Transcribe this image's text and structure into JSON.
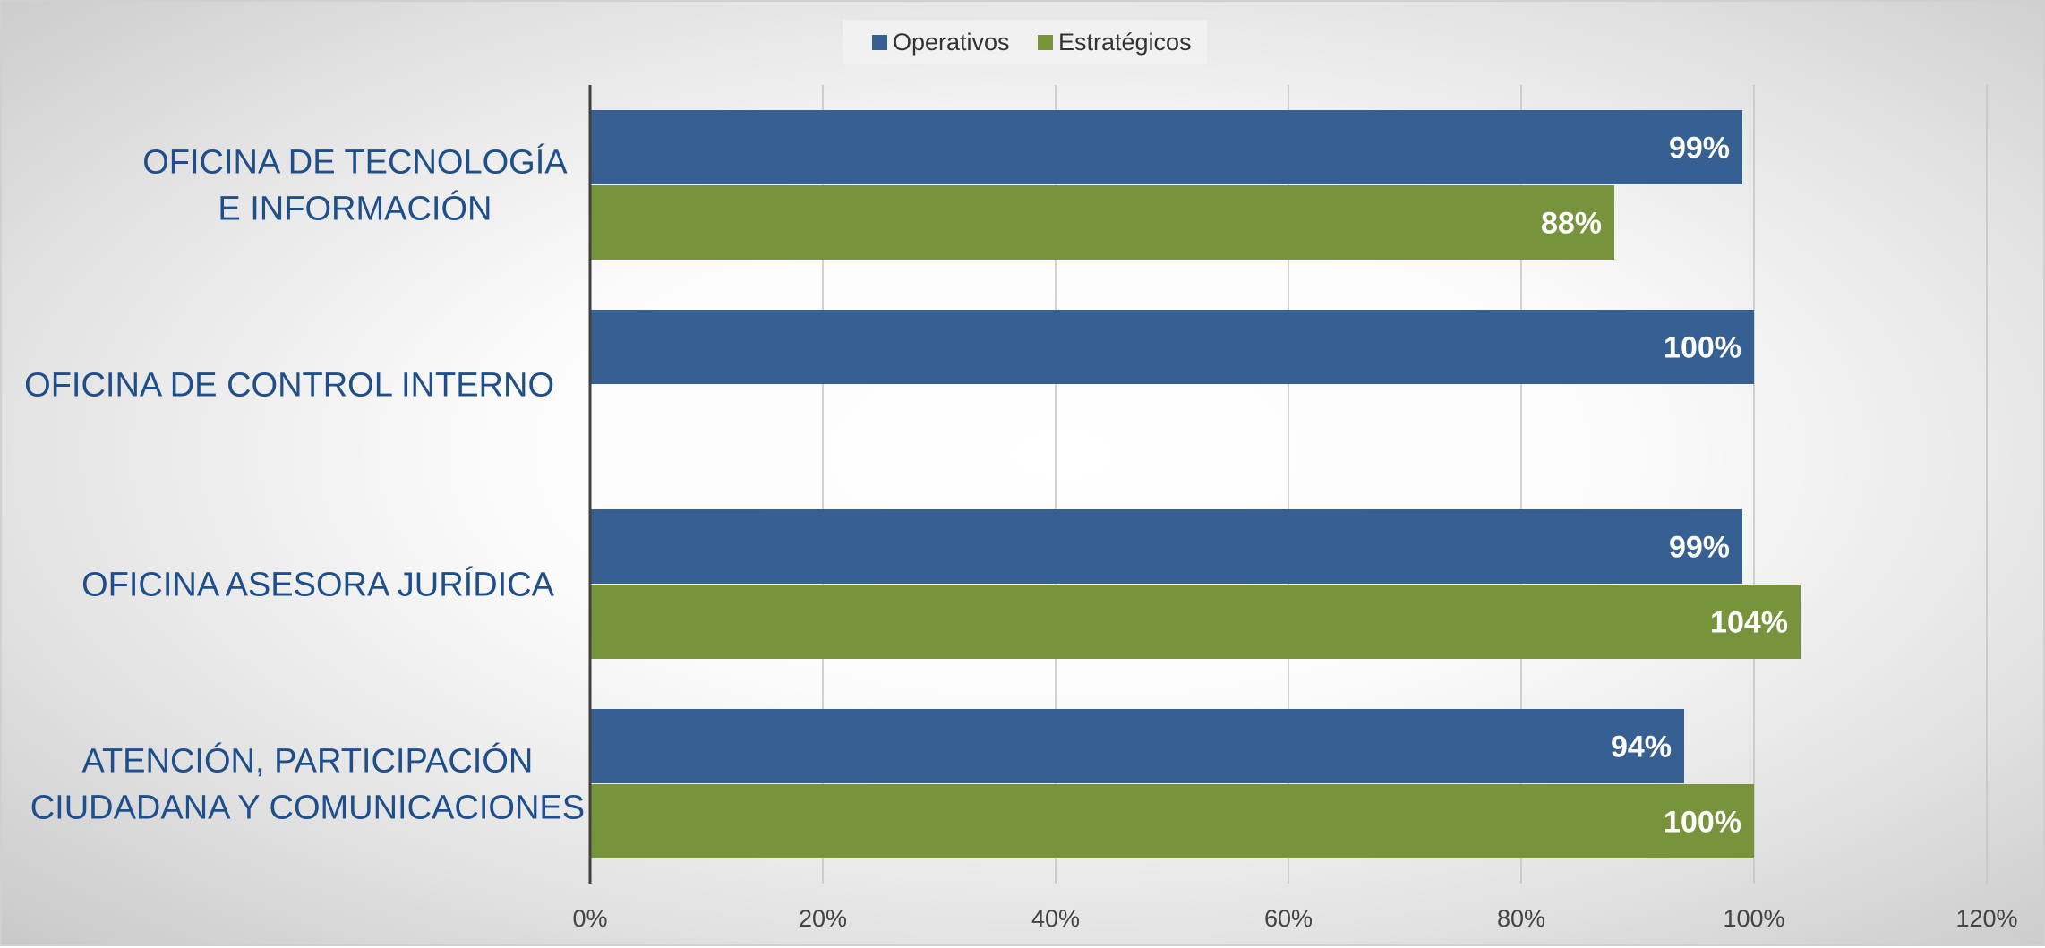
{
  "chart_data": {
    "type": "bar",
    "orientation": "horizontal",
    "categories": [
      [
        "OFICINA DE TECNOLOGÍA",
        "E INFORMACIÓN"
      ],
      [
        "OFICINA DE CONTROL INTERNO"
      ],
      [
        "OFICINA ASESORA JURÍDICA"
      ],
      [
        "ATENCIÓN, PARTICIPACIÓN",
        "CIUDADANA Y COMUNICACIONES"
      ]
    ],
    "series": [
      {
        "name": "Operativos",
        "color": "#366092",
        "values": [
          99,
          100,
          99,
          94
        ],
        "labels": [
          "99%",
          "100%",
          "99%",
          "94%"
        ]
      },
      {
        "name": "Estratégicos",
        "color": "#77933c",
        "values": [
          88,
          null,
          104,
          100
        ],
        "labels": [
          "88%",
          "",
          "104%",
          "100%"
        ]
      }
    ],
    "xlim": [
      0,
      120
    ],
    "xticks": [
      0,
      20,
      40,
      60,
      80,
      100,
      120
    ],
    "xtick_labels": [
      "0%",
      "20%",
      "40%",
      "60%",
      "80%",
      "100%",
      "120%"
    ],
    "grid": "vertical",
    "legend_position": "top-center"
  }
}
